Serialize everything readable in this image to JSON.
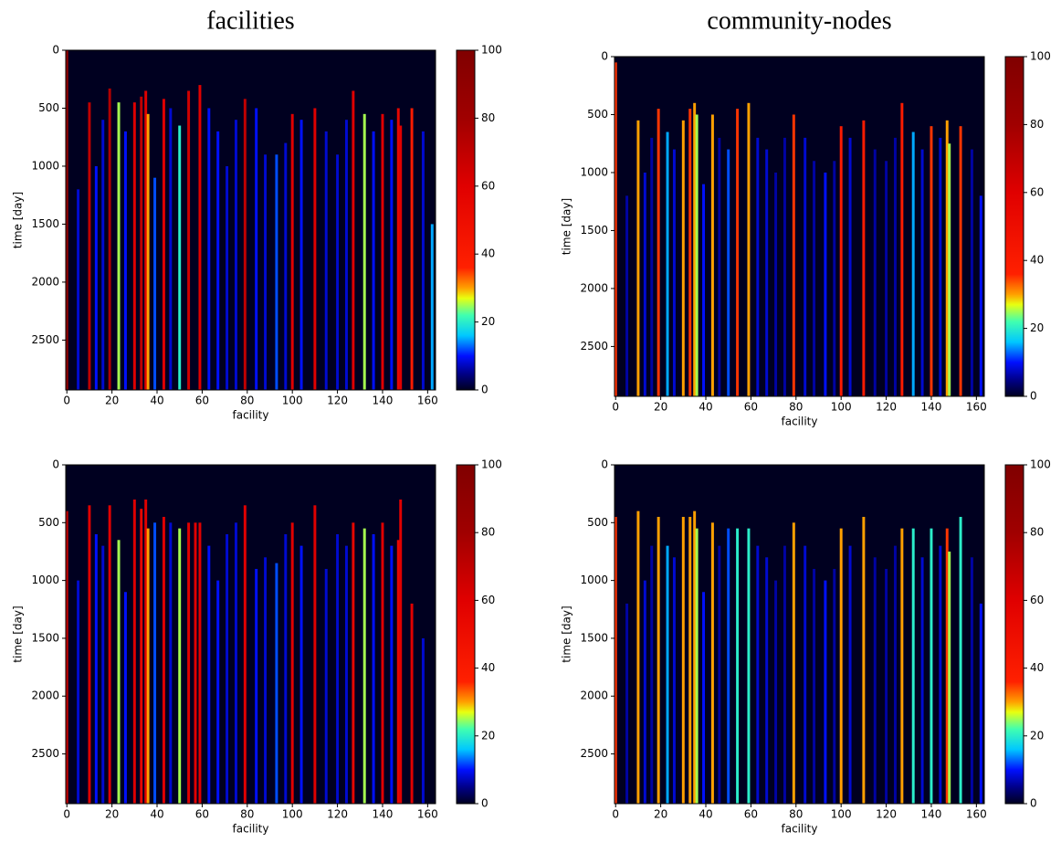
{
  "chart_data": [
    {
      "type": "heatmap",
      "title": "facilities",
      "xlabel": "facility",
      "ylabel": "time [day]",
      "xlim": [
        -0.5,
        163.5
      ],
      "ylim": [
        2930,
        0
      ],
      "xticks": [
        0,
        20,
        40,
        60,
        80,
        100,
        120,
        140,
        160
      ],
      "yticks": [
        0,
        500,
        1000,
        1500,
        2000,
        2500
      ],
      "clim": [
        0,
        100
      ],
      "cticks": [
        0,
        20,
        40,
        60,
        80,
        100
      ],
      "colormap": "jet",
      "facility": [
        0,
        10,
        19,
        23,
        30,
        33,
        35,
        36,
        43,
        50,
        54,
        59,
        79,
        93,
        100,
        110,
        127,
        132,
        140,
        147,
        148,
        153,
        5,
        13,
        16,
        26,
        39,
        46,
        63,
        67,
        71,
        75,
        84,
        88,
        97,
        104,
        115,
        120,
        124,
        136,
        144,
        158,
        162
      ],
      "onset": [
        0,
        450,
        330,
        450,
        450,
        400,
        350,
        550,
        420,
        650,
        350,
        300,
        420,
        900,
        550,
        500,
        350,
        550,
        550,
        500,
        650,
        500,
        1200,
        1000,
        600,
        700,
        1100,
        500,
        500,
        700,
        1000,
        600,
        500,
        900,
        800,
        600,
        700,
        900,
        600,
        700,
        600,
        700,
        1500
      ],
      "values": [
        90,
        70,
        75,
        25,
        60,
        70,
        60,
        30,
        60,
        20,
        65,
        60,
        70,
        12,
        60,
        60,
        60,
        25,
        60,
        55,
        60,
        40,
        8,
        10,
        8,
        10,
        12,
        8,
        10,
        10,
        8,
        8,
        10,
        8,
        8,
        10,
        8,
        8,
        8,
        10,
        10,
        8,
        15
      ]
    },
    {
      "type": "heatmap",
      "title": "community-nodes",
      "xlabel": "facility",
      "ylabel": "time [day]",
      "xlim": [
        -0.5,
        163.5
      ],
      "ylim": [
        2930,
        0
      ],
      "xticks": [
        0,
        20,
        40,
        60,
        80,
        100,
        120,
        140,
        160
      ],
      "yticks": [
        0,
        500,
        1000,
        1500,
        2000,
        2500
      ],
      "clim": [
        0,
        100
      ],
      "cticks": [
        0,
        20,
        40,
        60,
        80,
        100
      ],
      "colormap": "jet",
      "facility": [
        0,
        10,
        19,
        23,
        30,
        33,
        35,
        36,
        43,
        50,
        54,
        59,
        79,
        93,
        100,
        110,
        127,
        132,
        140,
        147,
        148,
        153,
        5,
        13,
        16,
        26,
        39,
        46,
        63,
        67,
        71,
        75,
        84,
        88,
        97,
        104,
        115,
        120,
        124,
        136,
        144,
        158,
        162
      ],
      "onset": [
        50,
        550,
        450,
        650,
        550,
        450,
        400,
        500,
        500,
        800,
        450,
        400,
        500,
        1000,
        600,
        550,
        400,
        650,
        600,
        550,
        750,
        600,
        1200,
        1000,
        700,
        800,
        1100,
        700,
        700,
        800,
        1000,
        700,
        700,
        900,
        900,
        700,
        800,
        900,
        700,
        800,
        700,
        800,
        1200
      ],
      "values": [
        35,
        30,
        35,
        15,
        30,
        35,
        30,
        25,
        30,
        12,
        35,
        30,
        35,
        10,
        40,
        40,
        40,
        15,
        35,
        30,
        25,
        35,
        6,
        8,
        6,
        8,
        10,
        6,
        8,
        8,
        6,
        6,
        8,
        6,
        6,
        8,
        6,
        6,
        6,
        8,
        8,
        6,
        10
      ]
    },
    {
      "type": "heatmap",
      "xlabel": "facility",
      "ylabel": "time [day]",
      "xlim": [
        -0.5,
        163.5
      ],
      "ylim": [
        2930,
        0
      ],
      "xticks": [
        0,
        20,
        40,
        60,
        80,
        100,
        120,
        140,
        160
      ],
      "yticks": [
        0,
        500,
        1000,
        1500,
        2000,
        2500
      ],
      "clim": [
        0,
        100
      ],
      "cticks": [
        0,
        20,
        40,
        60,
        80,
        100
      ],
      "colormap": "jet",
      "facility": [
        0,
        10,
        19,
        23,
        30,
        33,
        35,
        36,
        43,
        50,
        54,
        57,
        59,
        79,
        93,
        100,
        110,
        127,
        132,
        140,
        147,
        148,
        153,
        5,
        13,
        16,
        26,
        39,
        46,
        63,
        67,
        71,
        75,
        84,
        88,
        97,
        104,
        115,
        120,
        124,
        136,
        144,
        158,
        162
      ],
      "onset": [
        400,
        350,
        350,
        650,
        300,
        380,
        300,
        550,
        450,
        550,
        500,
        500,
        500,
        350,
        850,
        500,
        350,
        500,
        550,
        500,
        650,
        300,
        1200,
        1000,
        600,
        700,
        1100,
        500,
        500,
        700,
        1000,
        600,
        500,
        900,
        800,
        600,
        700,
        900,
        600,
        700,
        600,
        700,
        1500
      ],
      "values": [
        70,
        60,
        60,
        25,
        60,
        55,
        60,
        30,
        60,
        25,
        60,
        60,
        60,
        60,
        12,
        60,
        60,
        55,
        25,
        60,
        55,
        60,
        60,
        8,
        10,
        8,
        10,
        12,
        8,
        10,
        10,
        8,
        8,
        10,
        8,
        8,
        10,
        8,
        8,
        8,
        10,
        10,
        8,
        15
      ]
    },
    {
      "type": "heatmap",
      "xlabel": "facility",
      "ylabel": "time [day]",
      "xlim": [
        -0.5,
        163.5
      ],
      "ylim": [
        2930,
        0
      ],
      "xticks": [
        0,
        20,
        40,
        60,
        80,
        100,
        120,
        140,
        160
      ],
      "yticks": [
        0,
        500,
        1000,
        1500,
        2000,
        2500
      ],
      "clim": [
        0,
        100
      ],
      "cticks": [
        0,
        20,
        40,
        60,
        80,
        100
      ],
      "colormap": "jet",
      "facility": [
        0,
        10,
        19,
        23,
        30,
        33,
        35,
        36,
        43,
        50,
        54,
        59,
        79,
        93,
        100,
        110,
        127,
        132,
        140,
        147,
        148,
        153,
        5,
        13,
        16,
        26,
        39,
        46,
        63,
        67,
        71,
        75,
        84,
        88,
        97,
        104,
        115,
        120,
        124,
        136,
        144,
        158,
        162
      ],
      "onset": [
        450,
        400,
        450,
        700,
        450,
        450,
        400,
        550,
        500,
        550,
        550,
        550,
        500,
        1000,
        550,
        450,
        550,
        550,
        550,
        550,
        750,
        450,
        1200,
        1000,
        700,
        800,
        1100,
        700,
        700,
        800,
        1000,
        700,
        700,
        900,
        900,
        700,
        800,
        900,
        700,
        800,
        700,
        800,
        1200
      ],
      "values": [
        35,
        30,
        30,
        15,
        30,
        30,
        30,
        25,
        30,
        12,
        20,
        20,
        30,
        10,
        30,
        30,
        30,
        20,
        20,
        35,
        25,
        20,
        6,
        8,
        6,
        8,
        10,
        6,
        8,
        8,
        6,
        6,
        8,
        6,
        6,
        8,
        6,
        6,
        6,
        8,
        8,
        6,
        10
      ]
    }
  ]
}
